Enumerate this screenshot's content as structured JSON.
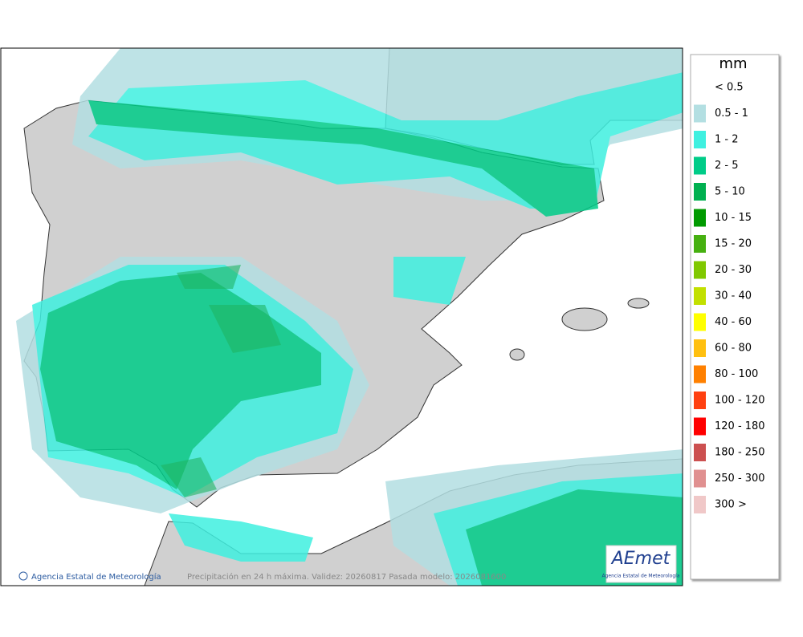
{
  "legend": {
    "title": "mm",
    "items": [
      {
        "label": "< 0.5",
        "color": "#ffffff"
      },
      {
        "label": "0.5 - 1",
        "color": "#b3dfe2"
      },
      {
        "label": "1 - 2",
        "color": "#3ff0e0"
      },
      {
        "label": "2 - 5",
        "color": "#00cc88"
      },
      {
        "label": "5 - 10",
        "color": "#00b050"
      },
      {
        "label": "10 - 15",
        "color": "#009a00"
      },
      {
        "label": "15 - 20",
        "color": "#46b010"
      },
      {
        "label": "20 - 30",
        "color": "#80c800"
      },
      {
        "label": "30 - 40",
        "color": "#c2e000"
      },
      {
        "label": "40 - 60",
        "color": "#ffff00"
      },
      {
        "label": "60 - 80",
        "color": "#ffc010"
      },
      {
        "label": "80 - 100",
        "color": "#ff8000"
      },
      {
        "label": "100 - 120",
        "color": "#ff4010"
      },
      {
        "label": "120 - 180",
        "color": "#ff0000"
      },
      {
        "label": "180 - 250",
        "color": "#cc5050"
      },
      {
        "label": "250 - 300",
        "color": "#e09090"
      },
      {
        "label": "300 >",
        "color": "#f0c8c8"
      }
    ]
  },
  "footer": {
    "credit": "Agencia Estatal de Meteorología",
    "caption": "Precipitación en 24 h máxima. Validez: 20260817 Pasada modelo: 2026081600"
  },
  "logo": {
    "name": "AEmet",
    "subtitle": "Agencia Estatal de Meteorología"
  }
}
